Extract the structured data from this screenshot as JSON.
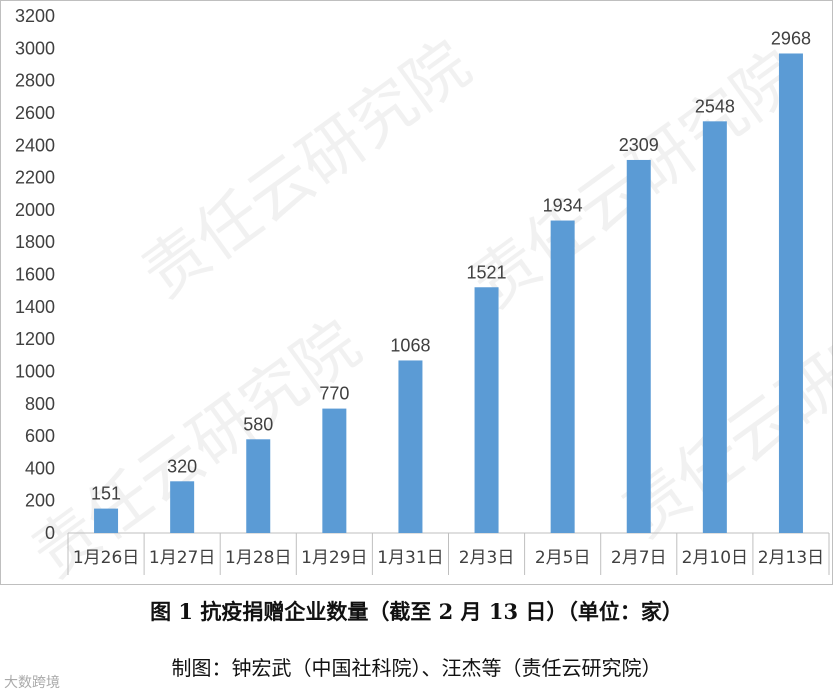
{
  "chart_data": {
    "type": "bar",
    "categories": [
      "1月26日",
      "1月27日",
      "1月28日",
      "1月29日",
      "1月31日",
      "2月3日",
      "2月5日",
      "2月7日",
      "2月10日",
      "2月13日"
    ],
    "values": [
      151,
      320,
      580,
      770,
      1068,
      1521,
      1934,
      2309,
      2548,
      2968
    ],
    "title": "",
    "xlabel": "",
    "ylabel": "",
    "ylim": [
      0,
      3200
    ],
    "yticks": [
      0,
      200,
      400,
      600,
      800,
      1000,
      1200,
      1400,
      1600,
      1800,
      2000,
      2200,
      2400,
      2600,
      2800,
      3000,
      3200
    ],
    "data_labels": true,
    "grid": false,
    "bar_color": "#5b9bd5"
  },
  "caption": "图 1  抗疫捐赠企业数量（截至 2 月 13 日）（单位：家）",
  "credit": "制图：钟宏武（中国社科院）、汪杰等（责任云研究院）",
  "watermark": "责任云研究院",
  "corner_logo": "大数跨境"
}
